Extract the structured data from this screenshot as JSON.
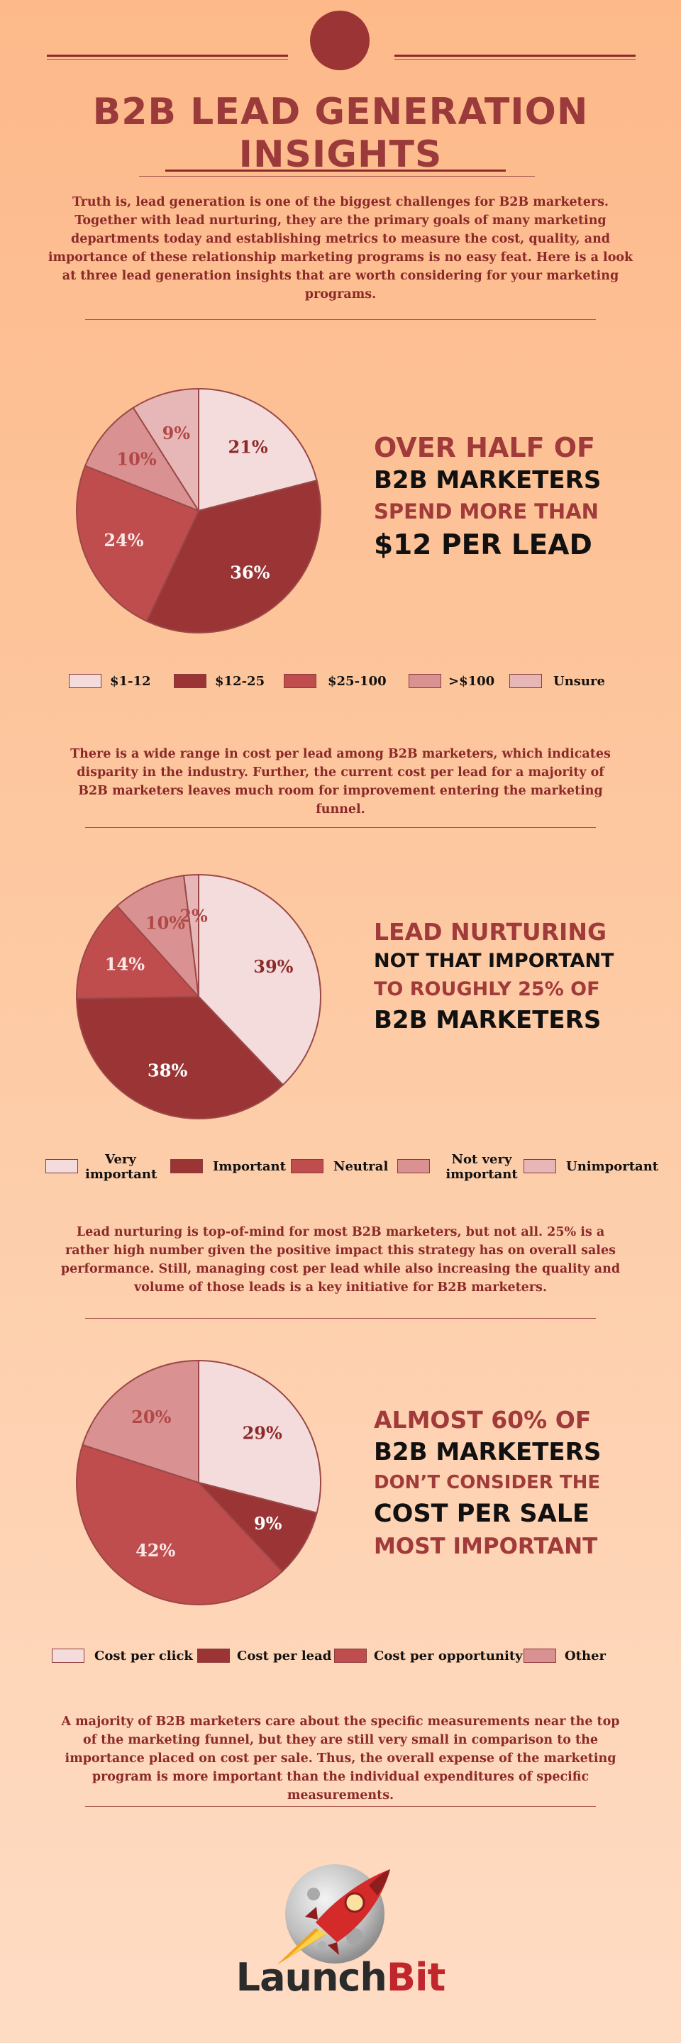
{
  "header": {
    "title": "B2B LEAD GENERATION INSIGHTS",
    "intro": "Truth is, lead generation is one of the biggest challenges for B2B marketers. Together with lead nurturing, they are the primary goals of many marketing departments today and establishing metrics to measure the cost, quality, and importance of these relationship marketing programs is no easy feat. Here is a look at three lead generation insights that are worth considering for your marketing programs."
  },
  "sections": [
    {
      "callout": [
        "OVER HALF OF",
        "B2B MARKETERS",
        "SPEND MORE THAN",
        "$12 PER LEAD"
      ],
      "text": "There is a wide range in cost per lead among B2B marketers, which indicates disparity in the industry. Further, the current cost per lead for a majority of B2B marketers leaves much room for improvement entering the marketing funnel."
    },
    {
      "callout": [
        "LEAD NURTURING",
        "NOT THAT IMPORTANT",
        "TO ROUGHLY 25% OF",
        "B2B MARKETERS"
      ],
      "text": "Lead nurturing is top-of-mind for most B2B marketers, but not all. 25% is a rather high number given the positive impact this strategy has on overall sales performance. Still, managing cost per lead while also increasing the quality and volume of those leads is a key initiative for B2B marketers."
    },
    {
      "callout": [
        "ALMOST 60% OF",
        "B2B MARKETERS",
        "DON’T CONSIDER THE",
        "COST PER SALE",
        "MOST IMPORTANT"
      ],
      "text": "A majority of B2B marketers care about the specific measurements near the top of the marketing funnel, but they are still very small in comparison to the importance placed on cost per sale. Thus, the overall expense of the marketing program is more important than the individual expenditures of specific measurements."
    }
  ],
  "chart_data": [
    {
      "type": "pie",
      "categories": [
        "$1-12",
        "$12-25",
        "$25-100",
        ">$100",
        "Unsure"
      ],
      "values": [
        21,
        36,
        24,
        10,
        9
      ],
      "labels": [
        "21%",
        "36%",
        "24%",
        "10%",
        "9%"
      ],
      "colors": [
        "#f4dcdc",
        "#9b3535",
        "#c04d4d",
        "#d99291",
        "#e7b7b7"
      ],
      "label_colors": [
        "#8c2a2a",
        "#ffffff",
        "#fbe8e8",
        "#b04848",
        "#b04848"
      ]
    },
    {
      "type": "pie",
      "categories": [
        "Very important",
        "Important",
        "Neutral",
        "Not very important",
        "Unimportant"
      ],
      "values": [
        39,
        38,
        14,
        10,
        2
      ],
      "labels": [
        "39%",
        "38%",
        "14%",
        "10%",
        "2%"
      ],
      "colors": [
        "#f4dcdc",
        "#9b3535",
        "#c04d4d",
        "#d99291",
        "#e7b7b7"
      ],
      "label_colors": [
        "#8c2a2a",
        "#ffffff",
        "#fbe8e8",
        "#b04848",
        "#b04848"
      ]
    },
    {
      "type": "pie",
      "categories": [
        "Cost per click",
        "Cost per lead",
        "Cost per opportunity",
        "Other"
      ],
      "values": [
        29,
        9,
        42,
        20
      ],
      "labels": [
        "29%",
        "9%",
        "42%",
        "20%"
      ],
      "colors": [
        "#f4dcdc",
        "#9b3535",
        "#c04d4d",
        "#d99291"
      ],
      "label_colors": [
        "#8c2a2a",
        "#ffffff",
        "#fbe8e8",
        "#b04848"
      ]
    }
  ],
  "footer": {
    "logo_part1": "Launch",
    "logo_part2": "Bit",
    "logo_color1": "#2b2b2b",
    "logo_color2": "#c0262c"
  }
}
